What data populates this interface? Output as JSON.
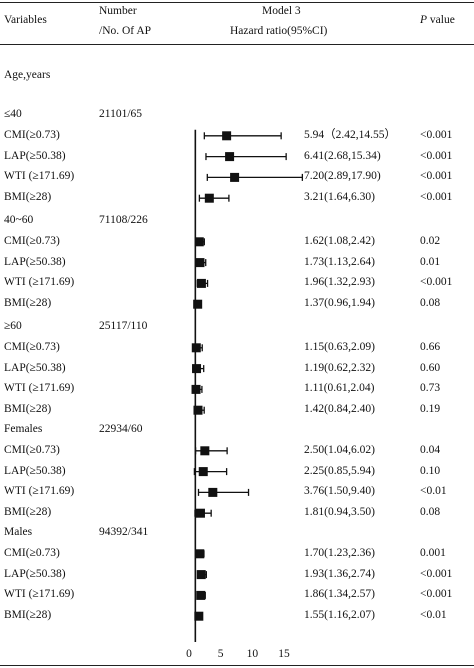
{
  "header": {
    "variables": "Variables",
    "number_line1": "Number",
    "number_line2": "/No. Of AP",
    "model": "Model 3",
    "hr": "Hazard ratio(95%CI)",
    "p_italic": "P",
    "p_rest": " value"
  },
  "section_title": "Age,years",
  "groups": [
    {
      "label": "≤40",
      "count": "21101/65",
      "rows": [
        {
          "var": "CMI(≥0.73)",
          "ci_text": "5.94（2.42,14.55）",
          "p": "<0.001"
        },
        {
          "var": "LAP(≥50.38)",
          "ci_text": "6.41(2.68,15.34)",
          "p": "<0.001"
        },
        {
          "var": "WTI (≥171.69)",
          "ci_text": "7.20(2.89,17.90)",
          "p": "<0.001"
        },
        {
          "var": "BMI(≥28)",
          "ci_text": "3.21(1.64,6.30)",
          "p": "<0.001"
        }
      ]
    },
    {
      "label": "40~60",
      "count": "71108/226",
      "rows": [
        {
          "var": "CMI(≥0.73)",
          "ci_text": "1.62(1.08,2.42)",
          "p": "0.02"
        },
        {
          "var": "LAP(≥50.38)",
          "ci_text": "1.73(1.13,2.64)",
          "p": "0.01"
        },
        {
          "var": "WTI (≥171.69)",
          "ci_text": "1.96(1.32,2.93)",
          "p": "<0.001"
        },
        {
          "var": "BMI(≥28)",
          "ci_text": "1.37(0.96,1.94)",
          "p": "0.08"
        }
      ]
    },
    {
      "label": "≥60",
      "count": "25117/110",
      "rows": [
        {
          "var": "CMI(≥0.73)",
          "ci_text": "1.15(0.63,2.09)",
          "p": "0.66"
        },
        {
          "var": "LAP(≥50.38)",
          "ci_text": "1.19(0.62,2.32)",
          "p": "0.60"
        },
        {
          "var": "WTI (≥171.69)",
          "ci_text": "1.11(0.61,2.04)",
          "p": "0.73"
        },
        {
          "var": "BMI(≥28)",
          "ci_text": "1.42(0.84,2.40)",
          "p": "0.19"
        }
      ]
    },
    {
      "label": "Females",
      "count": "22934/60",
      "rows": [
        {
          "var": "CMI(≥0.73)",
          "ci_text": "2.50(1.04,6.02)",
          "p": "0.04"
        },
        {
          "var": "LAP(≥50.38)",
          "ci_text": "2.25(0.85,5.94)",
          "p": "0.10"
        },
        {
          "var": "WTI (≥171.69)",
          "ci_text": "3.76(1.50,9.40)",
          "p": "<0.01"
        },
        {
          "var": "BMI(≥28)",
          "ci_text": "1.81(0.94,3.50)",
          "p": "0.08"
        }
      ]
    },
    {
      "label": "Males",
      "count": "94392/341",
      "rows": [
        {
          "var": "CMI(≥0.73)",
          "ci_text": "1.70(1.23,2.36)",
          "p": "0.001"
        },
        {
          "var": "LAP(≥50.38)",
          "ci_text": "1.93(1.36,2.74)",
          "p": "<0.001"
        },
        {
          "var": "WTI (≥171.69)",
          "ci_text": "1.86(1.34,2.57)",
          "p": "<0.001"
        },
        {
          "var": "BMI(≥28)",
          "ci_text": "1.55(1.16,2.07)",
          "p": "<0.01"
        }
      ]
    }
  ],
  "chart_data": {
    "type": "forest",
    "xlabel": "",
    "xlim": [
      0,
      17
    ],
    "reference_line": 1,
    "x_ticks": [
      0,
      5,
      10,
      15
    ],
    "x_tick_labels": [
      "0",
      "5",
      "10",
      "15"
    ],
    "series": [
      {
        "group": "≤40",
        "var": "CMI(≥0.73)",
        "hr": 5.94,
        "lo": 2.42,
        "hi": 14.55
      },
      {
        "group": "≤40",
        "var": "LAP(≥50.38)",
        "hr": 6.41,
        "lo": 2.68,
        "hi": 15.34
      },
      {
        "group": "≤40",
        "var": "WTI (≥171.69)",
        "hr": 7.2,
        "lo": 2.89,
        "hi": 17.9
      },
      {
        "group": "≤40",
        "var": "BMI(≥28)",
        "hr": 3.21,
        "lo": 1.64,
        "hi": 6.3
      },
      {
        "group": "40~60",
        "var": "CMI(≥0.73)",
        "hr": 1.62,
        "lo": 1.08,
        "hi": 2.42
      },
      {
        "group": "40~60",
        "var": "LAP(≥50.38)",
        "hr": 1.73,
        "lo": 1.13,
        "hi": 2.64
      },
      {
        "group": "40~60",
        "var": "WTI (≥171.69)",
        "hr": 1.96,
        "lo": 1.32,
        "hi": 2.93
      },
      {
        "group": "40~60",
        "var": "BMI(≥28)",
        "hr": 1.37,
        "lo": 0.96,
        "hi": 1.94
      },
      {
        "group": "≥60",
        "var": "CMI(≥0.73)",
        "hr": 1.15,
        "lo": 0.63,
        "hi": 2.09
      },
      {
        "group": "≥60",
        "var": "LAP(≥50.38)",
        "hr": 1.19,
        "lo": 0.62,
        "hi": 2.32
      },
      {
        "group": "≥60",
        "var": "WTI (≥171.69)",
        "hr": 1.11,
        "lo": 0.61,
        "hi": 2.04
      },
      {
        "group": "≥60",
        "var": "BMI(≥28)",
        "hr": 1.42,
        "lo": 0.84,
        "hi": 2.4
      },
      {
        "group": "Females",
        "var": "CMI(≥0.73)",
        "hr": 2.5,
        "lo": 1.04,
        "hi": 6.02
      },
      {
        "group": "Females",
        "var": "LAP(≥50.38)",
        "hr": 2.25,
        "lo": 0.85,
        "hi": 5.94
      },
      {
        "group": "Females",
        "var": "WTI (≥171.69)",
        "hr": 3.76,
        "lo": 1.5,
        "hi": 9.4
      },
      {
        "group": "Females",
        "var": "BMI(≥28)",
        "hr": 1.81,
        "lo": 0.94,
        "hi": 3.5
      },
      {
        "group": "Males",
        "var": "CMI(≥0.73)",
        "hr": 1.7,
        "lo": 1.23,
        "hi": 2.36
      },
      {
        "group": "Males",
        "var": "LAP(≥50.38)",
        "hr": 1.93,
        "lo": 1.36,
        "hi": 2.74
      },
      {
        "group": "Males",
        "var": "WTI (≥171.69)",
        "hr": 1.86,
        "lo": 1.34,
        "hi": 2.57
      },
      {
        "group": "Males",
        "var": "BMI(≥28)",
        "hr": 1.55,
        "lo": 1.16,
        "hi": 2.07
      }
    ]
  }
}
